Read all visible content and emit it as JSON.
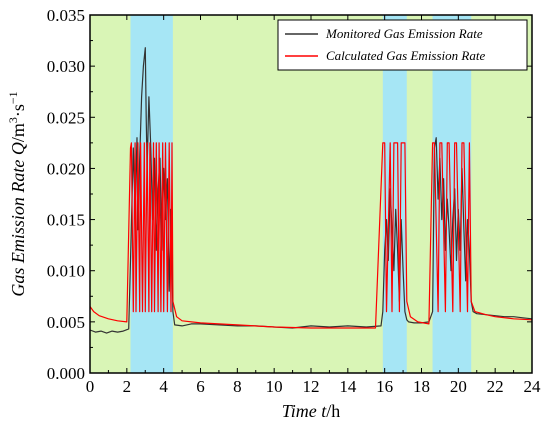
{
  "colors": {
    "plot_background": "#d9f5b6",
    "highlight_band": "#a6e6f5",
    "monitored_line": "#333333",
    "calculated_line": "#ff0000"
  },
  "chart_data": {
    "type": "line",
    "xlabel": {
      "prefix": "Time  ",
      "variable": "t",
      "unit": "/h"
    },
    "ylabel": {
      "prefix": "Gas Emission Rate Q",
      "unit": "/m",
      "unit_sup": "3",
      "unit_rest": "·s",
      "unit_sup2": "−1"
    },
    "xlim": [
      0,
      24
    ],
    "ylim": [
      0.0,
      0.035
    ],
    "x_ticks": [
      "0",
      "2",
      "4",
      "6",
      "8",
      "10",
      "12",
      "14",
      "16",
      "18",
      "20",
      "22",
      "24"
    ],
    "y_ticks": [
      "0.000",
      "0.005",
      "0.010",
      "0.015",
      "0.020",
      "0.025",
      "0.030",
      "0.035"
    ],
    "grid": false,
    "legend_position": "top-right",
    "highlight_bands": [
      [
        2.2,
        4.5
      ],
      [
        15.9,
        17.2
      ],
      [
        18.6,
        20.7
      ]
    ],
    "series": [
      {
        "name": "Monitored Gas Emission Rate",
        "color": "#333333",
        "x": [
          0,
          0.3,
          0.6,
          0.9,
          1.2,
          1.5,
          1.8,
          2.1,
          2.2,
          2.35,
          2.45,
          2.55,
          2.6,
          2.7,
          2.8,
          2.9,
          3.0,
          3.05,
          3.1,
          3.2,
          3.3,
          3.4,
          3.5,
          3.6,
          3.7,
          3.8,
          3.9,
          4.0,
          4.1,
          4.2,
          4.3,
          4.4,
          4.5,
          4.6,
          5.0,
          5.5,
          6.0,
          7.0,
          8.0,
          9.0,
          10.0,
          11.0,
          12.0,
          13.0,
          14.0,
          15.0,
          15.8,
          15.9,
          16.0,
          16.1,
          16.2,
          16.3,
          16.4,
          16.5,
          16.6,
          16.7,
          16.8,
          16.9,
          17.0,
          17.1,
          17.2,
          17.3,
          17.6,
          18.0,
          18.4,
          18.6,
          18.7,
          18.8,
          18.9,
          19.0,
          19.1,
          19.2,
          19.3,
          19.4,
          19.5,
          19.6,
          19.7,
          19.8,
          19.9,
          20.0,
          20.1,
          20.2,
          20.3,
          20.4,
          20.5,
          20.6,
          20.7,
          20.8,
          21.0,
          21.5,
          22.0,
          22.5,
          23.0,
          23.5,
          24.0
        ],
        "values": [
          0.0042,
          0.004,
          0.0041,
          0.0039,
          0.0041,
          0.004,
          0.0041,
          0.0043,
          0.011,
          0.022,
          0.016,
          0.023,
          0.014,
          0.021,
          0.027,
          0.03,
          0.0318,
          0.025,
          0.02,
          0.027,
          0.022,
          0.015,
          0.021,
          0.012,
          0.018,
          0.021,
          0.012,
          0.02,
          0.015,
          0.019,
          0.008,
          0.016,
          0.006,
          0.0047,
          0.0046,
          0.0048,
          0.0048,
          0.0047,
          0.0046,
          0.0046,
          0.0045,
          0.0044,
          0.0046,
          0.0045,
          0.0046,
          0.0045,
          0.0046,
          0.006,
          0.012,
          0.015,
          0.011,
          0.018,
          0.014,
          0.01,
          0.016,
          0.012,
          0.007,
          0.015,
          0.01,
          0.006,
          0.0052,
          0.005,
          0.0049,
          0.0049,
          0.005,
          0.006,
          0.022,
          0.023,
          0.017,
          0.021,
          0.015,
          0.019,
          0.012,
          0.017,
          0.014,
          0.01,
          0.015,
          0.018,
          0.011,
          0.016,
          0.012,
          0.02,
          0.014,
          0.009,
          0.015,
          0.012,
          0.007,
          0.006,
          0.0058,
          0.0057,
          0.0056,
          0.0055,
          0.0055,
          0.0054,
          0.0053
        ]
      },
      {
        "name": "Calculated Gas Emission Rate",
        "color": "#ff0000",
        "x": [
          0,
          0.2,
          0.5,
          1.0,
          1.5,
          2.0,
          2.2,
          2.25,
          2.35,
          2.45,
          2.5,
          2.6,
          2.7,
          2.75,
          2.85,
          2.95,
          3.0,
          3.1,
          3.2,
          3.25,
          3.35,
          3.45,
          3.5,
          3.6,
          3.7,
          3.75,
          3.85,
          3.95,
          4.0,
          4.1,
          4.2,
          4.3,
          4.4,
          4.45,
          4.5,
          4.7,
          5.0,
          6.0,
          8.0,
          10.0,
          12.0,
          14.0,
          15.5,
          15.9,
          16.0,
          16.1,
          16.3,
          16.4,
          16.5,
          16.7,
          16.8,
          16.9,
          17.1,
          17.2,
          17.4,
          17.8,
          18.4,
          18.6,
          18.7,
          18.9,
          19.0,
          19.1,
          19.3,
          19.4,
          19.5,
          19.7,
          19.8,
          19.9,
          20.1,
          20.2,
          20.3,
          20.5,
          20.6,
          20.7,
          20.9,
          21.5,
          22.0,
          23.0,
          24.0
        ],
        "values": [
          0.0065,
          0.006,
          0.0056,
          0.0053,
          0.0051,
          0.005,
          0.022,
          0.0225,
          0.006,
          0.0225,
          0.006,
          0.0225,
          0.006,
          0.0225,
          0.006,
          0.0225,
          0.006,
          0.0225,
          0.006,
          0.0225,
          0.006,
          0.0225,
          0.006,
          0.0225,
          0.006,
          0.0225,
          0.006,
          0.0225,
          0.006,
          0.0225,
          0.006,
          0.0225,
          0.006,
          0.0225,
          0.007,
          0.0055,
          0.0051,
          0.0049,
          0.0047,
          0.0045,
          0.0044,
          0.0044,
          0.0044,
          0.0225,
          0.0225,
          0.006,
          0.0225,
          0.006,
          0.0225,
          0.0225,
          0.006,
          0.0225,
          0.0225,
          0.007,
          0.0055,
          0.005,
          0.0048,
          0.0225,
          0.0225,
          0.006,
          0.0225,
          0.0225,
          0.006,
          0.0225,
          0.0225,
          0.006,
          0.0225,
          0.0225,
          0.006,
          0.0225,
          0.0225,
          0.006,
          0.0225,
          0.007,
          0.006,
          0.0057,
          0.0055,
          0.0053,
          0.0052
        ]
      }
    ]
  }
}
